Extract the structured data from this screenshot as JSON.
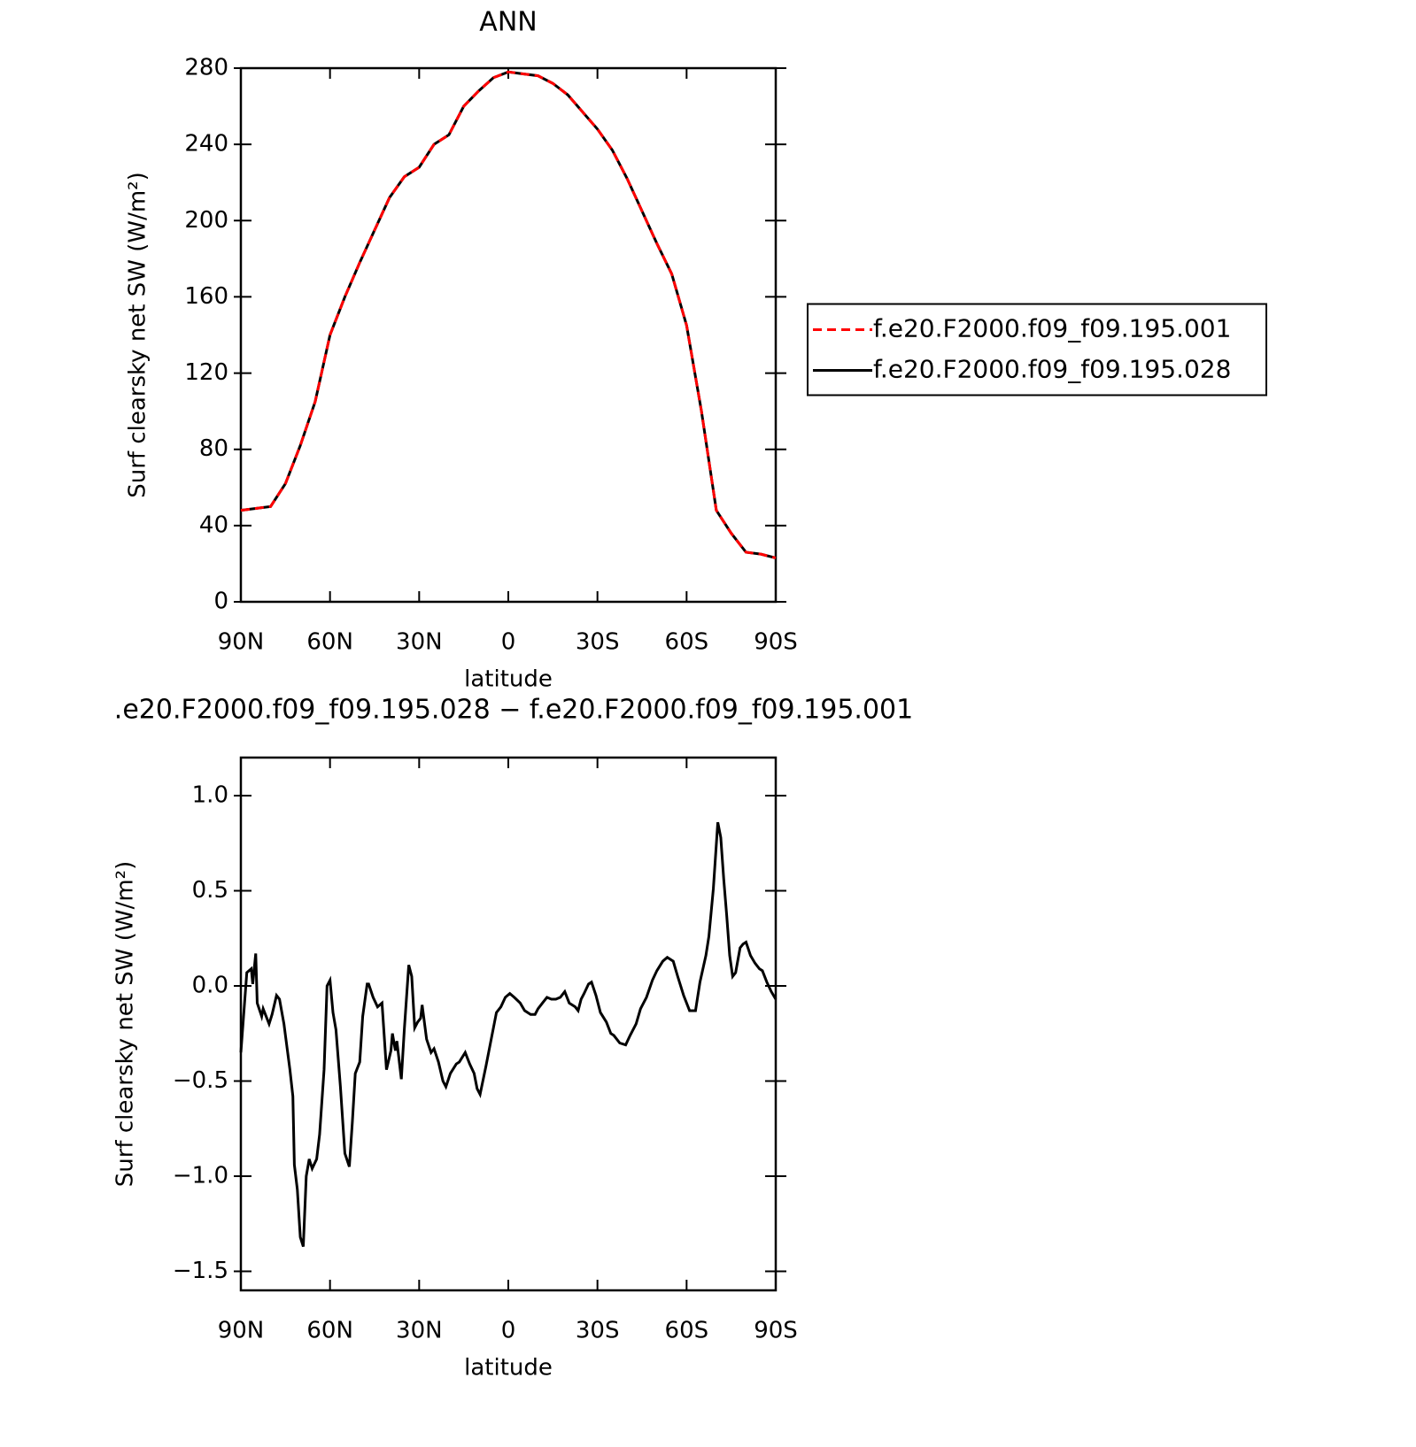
{
  "chart_data": [
    {
      "type": "line",
      "title": "ANN",
      "xlabel": "latitude",
      "ylabel": "Surf clearsky net SW (W/m²)",
      "x": [
        90,
        85,
        80,
        75,
        70,
        65,
        60,
        55,
        50,
        45,
        40,
        35,
        30,
        25,
        20,
        15,
        10,
        5,
        0,
        -5,
        -10,
        -15,
        -20,
        -25,
        -30,
        -35,
        -40,
        -45,
        -50,
        -55,
        -60,
        -65,
        -70,
        -75,
        -80,
        -85,
        -90
      ],
      "series": [
        {
          "name": "f.e20.F2000.f09_f09.195.001",
          "color": "#ff0000",
          "line_style": "dashed",
          "values": [
            48,
            49,
            50,
            62,
            82,
            105,
            140,
            160,
            178,
            195,
            212,
            223,
            228,
            240,
            245,
            260,
            268,
            275,
            278,
            277,
            276,
            272,
            266,
            257,
            248,
            237,
            222,
            205,
            188,
            172,
            145,
            100,
            48,
            36,
            26,
            25,
            23
          ]
        },
        {
          "name": "f.e20.F2000.f09_f09.195.028",
          "color": "#000000",
          "line_style": "solid",
          "values": [
            48,
            49,
            50,
            62,
            82,
            105,
            140,
            160,
            178,
            195,
            212,
            223,
            228,
            240,
            245,
            260,
            268,
            275,
            278,
            277,
            276,
            272,
            266,
            257,
            248,
            237,
            222,
            205,
            188,
            172,
            145,
            100,
            48,
            36,
            26,
            25,
            23
          ]
        }
      ],
      "xlim": [
        90,
        -90
      ],
      "xticks": [
        {
          "value": 90,
          "label": "90N"
        },
        {
          "value": 60,
          "label": "60N"
        },
        {
          "value": 30,
          "label": "30N"
        },
        0,
        {
          "value": -30,
          "label": "30S"
        },
        {
          "value": -60,
          "label": "60S"
        },
        {
          "value": -90,
          "label": "90S"
        }
      ],
      "ylim": [
        0,
        280
      ],
      "yticks": [
        0,
        40,
        80,
        120,
        160,
        200,
        240,
        280
      ],
      "legend": "right"
    },
    {
      "type": "line",
      "title": ".e20.F2000.f09_f09.195.028 − f.e20.F2000.f09_f09.195.001",
      "xlabel": "latitude",
      "ylabel": "Surf clearsky net SW (W/m²)",
      "color": "#000000",
      "x": [
        90,
        88,
        86.5,
        86,
        85,
        84.5,
        83,
        82.5,
        80.5,
        79.5,
        78,
        77,
        75.5,
        75,
        73.5,
        72.5,
        72,
        71,
        70,
        69,
        68,
        67,
        66,
        64.5,
        63.5,
        62,
        61,
        60,
        59,
        58,
        56.5,
        55,
        53.5,
        52.5,
        51.5,
        50,
        49,
        47.5,
        47,
        45.5,
        44,
        42.5,
        41,
        39.5,
        39,
        38,
        37.5,
        36,
        35,
        33.5,
        32.5,
        31.5,
        30.5,
        29.5,
        29,
        27.5,
        26,
        25,
        23.5,
        22,
        21,
        19.5,
        17.5,
        16.5,
        14.5,
        13,
        11.5,
        10.5,
        9.5,
        7.5,
        5.5,
        4,
        2.5,
        1,
        -0.5,
        -2,
        -4,
        -5.5,
        -7.5,
        -9,
        -10,
        -11.5,
        -13,
        -14.5,
        -16,
        -17.5,
        -19,
        -20.5,
        -22.5,
        -23.5,
        -24.5,
        -25.5,
        -27,
        -28,
        -29.5,
        -31,
        -33,
        -34.5,
        -35.5,
        -37.5,
        -39.5,
        -41,
        -43,
        -44.5,
        -46.5,
        -48.5,
        -50,
        -52,
        -53.5,
        -55.5,
        -57,
        -59,
        -61,
        -63,
        -64.5,
        -66.5,
        -67.5,
        -69,
        -70.5,
        -71.5,
        -72.5,
        -73.5,
        -74.5,
        -75.5,
        -76.5,
        -78,
        -79,
        -80,
        -81.5,
        -83,
        -84.5,
        -85.5,
        -87,
        -88.5,
        -90
      ],
      "values": [
        -0.35,
        0.07,
        0.09,
        0.01,
        0.17,
        -0.09,
        -0.16,
        -0.12,
        -0.2,
        -0.15,
        -0.05,
        -0.07,
        -0.2,
        -0.26,
        -0.44,
        -0.58,
        -0.94,
        -1.07,
        -1.32,
        -1.37,
        -1.0,
        -0.91,
        -0.96,
        -0.91,
        -0.78,
        -0.44,
        0.0,
        0.03,
        -0.14,
        -0.23,
        -0.53,
        -0.88,
        -0.95,
        -0.72,
        -0.46,
        -0.4,
        -0.16,
        0.01,
        0.01,
        -0.06,
        -0.11,
        -0.09,
        -0.44,
        -0.34,
        -0.25,
        -0.34,
        -0.29,
        -0.49,
        -0.23,
        0.11,
        0.05,
        -0.22,
        -0.19,
        -0.17,
        -0.1,
        -0.28,
        -0.35,
        -0.33,
        -0.4,
        -0.5,
        -0.53,
        -0.46,
        -0.41,
        -0.4,
        -0.35,
        -0.41,
        -0.46,
        -0.54,
        -0.57,
        -0.42,
        -0.26,
        -0.14,
        -0.11,
        -0.06,
        -0.04,
        -0.06,
        -0.09,
        -0.13,
        -0.15,
        -0.15,
        -0.12,
        -0.09,
        -0.06,
        -0.07,
        -0.07,
        -0.06,
        -0.03,
        -0.09,
        -0.11,
        -0.13,
        -0.07,
        -0.04,
        0.01,
        0.02,
        -0.05,
        -0.14,
        -0.19,
        -0.25,
        -0.26,
        -0.3,
        -0.31,
        -0.26,
        -0.2,
        -0.12,
        -0.06,
        0.03,
        0.08,
        0.13,
        0.15,
        0.13,
        0.05,
        -0.05,
        -0.13,
        -0.13,
        0.02,
        0.16,
        0.26,
        0.51,
        0.86,
        0.78,
        0.56,
        0.37,
        0.16,
        0.05,
        0.07,
        0.2,
        0.22,
        0.23,
        0.16,
        0.12,
        0.09,
        0.08,
        0.02,
        -0.03,
        -0.07
      ],
      "xlim": [
        90,
        -90
      ],
      "xticks": [
        {
          "value": 90,
          "label": "90N"
        },
        {
          "value": 60,
          "label": "60N"
        },
        {
          "value": 30,
          "label": "30N"
        },
        0,
        {
          "value": -30,
          "label": "30S"
        },
        {
          "value": -60,
          "label": "60S"
        },
        {
          "value": -90,
          "label": "90S"
        }
      ],
      "ylim": [
        -1.6,
        1.2
      ],
      "yticks": [
        {
          "value": -1.5,
          "label": "−1.5"
        },
        {
          "value": -1,
          "label": "−1.0"
        },
        {
          "value": -0.5,
          "label": "−0.5"
        },
        {
          "value": 0,
          "label": "0.0"
        },
        {
          "value": 0.5,
          "label": "0.5"
        },
        {
          "value": 1,
          "label": "1.0"
        }
      ]
    }
  ]
}
